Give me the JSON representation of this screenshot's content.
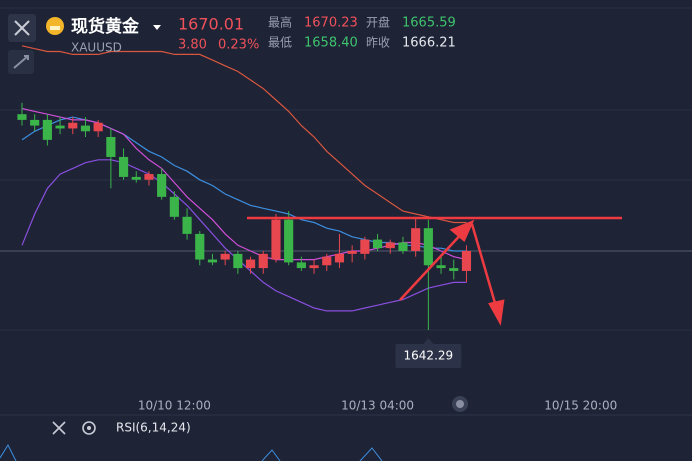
{
  "header": {
    "name": "现货黄金",
    "symbol": "XAUUSD",
    "price": "1670.01",
    "change": "3.80",
    "change_pct": "0.23%",
    "stats": [
      {
        "label": "最高",
        "value": "1670.23",
        "color": "#f0525a"
      },
      {
        "label": "开盘",
        "value": "1665.59",
        "color": "#3ec46d"
      },
      {
        "label": "最低",
        "value": "1658.40",
        "color": "#3ec46d"
      },
      {
        "label": "昨收",
        "value": "1666.21",
        "color": "#e6e8ee"
      }
    ]
  },
  "chart_data": {
    "type": "candlestick",
    "x": [
      0,
      1,
      2,
      3,
      4,
      5,
      6,
      7,
      8,
      9,
      10,
      11,
      12,
      13,
      14,
      15,
      16,
      17,
      18,
      19,
      20,
      21,
      22,
      23,
      24,
      25,
      26,
      27,
      28,
      29,
      30,
      31,
      32,
      33,
      34,
      35
    ],
    "open": [
      1718,
      1716,
      1716,
      1714,
      1713,
      1714,
      1712,
      1710,
      1703,
      1696,
      1695,
      1697,
      1689,
      1682,
      1676,
      1667,
      1667,
      1669,
      1664,
      1664,
      1667,
      1681,
      1666,
      1664,
      1665,
      1666,
      1669,
      1669,
      1674,
      1671,
      1673,
      1670,
      1678,
      1665,
      1664,
      1663
    ],
    "high": [
      1722,
      1718,
      1718,
      1717,
      1717,
      1717,
      1716,
      1713,
      1706,
      1698,
      1698,
      1699,
      1691,
      1685,
      1677,
      1669,
      1670,
      1670,
      1668,
      1670,
      1683,
      1684,
      1668,
      1667,
      1669,
      1676,
      1672,
      1675,
      1676,
      1674,
      1675,
      1682,
      1681,
      1668,
      1667,
      1672
    ],
    "low": [
      1714,
      1712,
      1707,
      1711,
      1711,
      1710,
      1710,
      1692,
      1695,
      1694,
      1693,
      1688,
      1681,
      1674,
      1665,
      1665,
      1665,
      1662,
      1662,
      1662,
      1666,
      1665,
      1663,
      1662,
      1663,
      1664,
      1666,
      1667,
      1670,
      1669,
      1669,
      1668,
      1642.29,
      1662,
      1660,
      1659
    ],
    "close": [
      1716,
      1714,
      1709,
      1713,
      1715,
      1712,
      1715,
      1703,
      1696,
      1695,
      1697,
      1689,
      1682,
      1676,
      1667,
      1666,
      1669,
      1664,
      1667,
      1669,
      1681,
      1666,
      1664,
      1665,
      1668,
      1669,
      1670,
      1674,
      1671,
      1673,
      1670,
      1678,
      1665,
      1664,
      1663,
      1670.01
    ],
    "up_color": "#e8474f",
    "down_color": "#3bb54a",
    "lines": [
      {
        "color": "#d9573f",
        "values": [
          1742,
          1741,
          1740,
          1740,
          1739,
          1739,
          1739,
          1740,
          1740,
          1740,
          1740,
          1740,
          1739,
          1739,
          1739,
          1737,
          1735,
          1733,
          1730,
          1727,
          1723,
          1719,
          1714,
          1710,
          1705,
          1701,
          1697,
          1693,
          1690,
          1687,
          1684,
          1683,
          1682,
          1681,
          1680,
          1680
        ]
      },
      {
        "color": "#3d8fe0",
        "values": [
          1709,
          1712,
          1714,
          1716,
          1717,
          1716,
          1715,
          1713,
          1711,
          1708,
          1705,
          1703,
          1700,
          1698,
          1695,
          1693,
          1690,
          1688,
          1686,
          1685,
          1684,
          1683,
          1681,
          1680,
          1678,
          1677,
          1675,
          1674,
          1673,
          1673,
          1672,
          1672,
          1671,
          1671,
          1670,
          1670
        ]
      },
      {
        "color": "#d04fd8",
        "values": [
          1720,
          1719,
          1718,
          1717,
          1716,
          1716,
          1715,
          1713,
          1711,
          1706,
          1702,
          1699,
          1694,
          1689,
          1685,
          1681,
          1676,
          1672,
          1670,
          1668,
          1667,
          1667,
          1667,
          1667,
          1668,
          1669,
          1670,
          1670,
          1671,
          1672,
          1673,
          1673,
          1672,
          1670,
          1668,
          1667
        ]
      },
      {
        "color": "#8a4fe0",
        "values": [
          1672,
          1683,
          1692,
          1697,
          1699,
          1701,
          1702,
          1702,
          1701,
          1699,
          1697,
          1694,
          1690,
          1686,
          1681,
          1676,
          1671,
          1667,
          1663,
          1659,
          1656,
          1654,
          1652,
          1650,
          1649,
          1649,
          1649,
          1650,
          1651,
          1652,
          1653,
          1655,
          1657,
          1658,
          1659,
          1659
        ]
      }
    ],
    "xlim": [
      -1.73,
      52.76
    ],
    "xticks": [
      {
        "value": 12,
        "label": "10/10 12:00"
      },
      {
        "value": 28,
        "label": "10/13 04:00"
      },
      {
        "value": 44,
        "label": "10/15 20:00"
      }
    ],
    "ylim": [
      1621.23,
      1758.07
    ]
  },
  "indicator": "RSI(6,14,24)"
}
